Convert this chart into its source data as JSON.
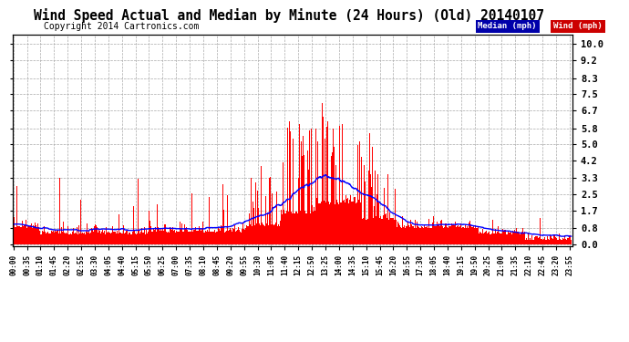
{
  "title": "Wind Speed Actual and Median by Minute (24 Hours) (Old) 20140107",
  "copyright": "Copyright 2014 Cartronics.com",
  "legend_median": "Median (mph)",
  "legend_wind": "Wind (mph)",
  "n_minutes": 1440,
  "yticks": [
    0.0,
    0.8,
    1.7,
    2.5,
    3.3,
    4.2,
    5.0,
    5.8,
    6.7,
    7.5,
    8.3,
    9.2,
    10.0
  ],
  "ylim": [
    -0.1,
    10.5
  ],
  "wind_color": "#FF0000",
  "median_color": "#0000FF",
  "background_color": "#FFFFFF",
  "grid_color": "#AAAAAA",
  "title_fontsize": 10.5,
  "copyright_fontsize": 7,
  "tick_interval": 35,
  "legend_median_bg": "#0000AA",
  "legend_wind_bg": "#CC0000"
}
